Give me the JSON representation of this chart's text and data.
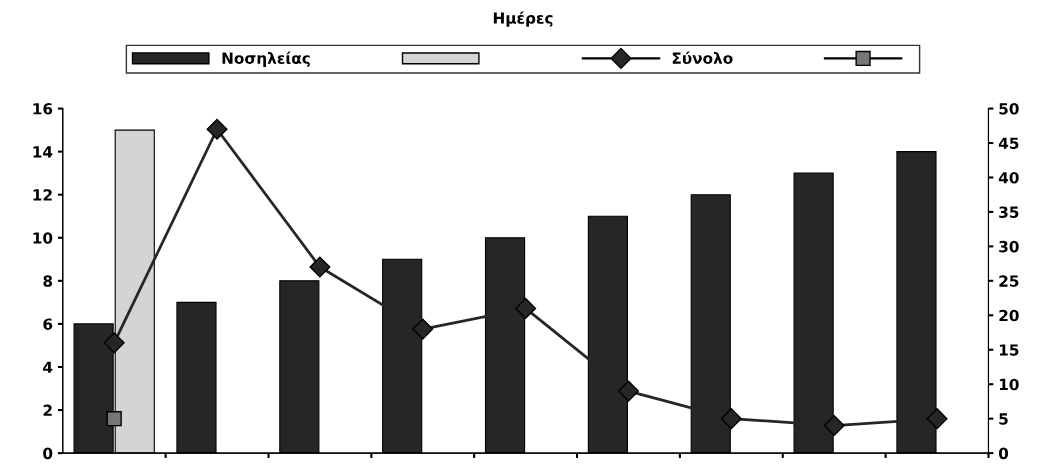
{
  "chart_data": {
    "type": "bar",
    "title": "Ημέρες",
    "categories": [
      null,
      null,
      null,
      null,
      null,
      null,
      null,
      null,
      null
    ],
    "series": [
      {
        "name": "Νοσηλείας",
        "color": "#262626",
        "values": [
          6,
          7,
          8,
          9,
          10,
          11,
          12,
          13,
          14
        ]
      },
      {
        "color": "#d4d4d4",
        "values": [
          15,
          null,
          null,
          null,
          null,
          null,
          null,
          null,
          null
        ]
      },
      {
        "name": "Σύνολο",
        "type": "line",
        "axis": "y2",
        "color": "#262626",
        "marker": "diamond",
        "values": [
          16,
          47,
          27,
          18,
          21,
          9,
          5,
          4,
          5
        ]
      },
      {
        "type": "line",
        "axis": "y2",
        "color": "#777777",
        "marker": "square",
        "values": [
          5,
          null,
          null,
          null,
          null,
          null,
          null,
          null,
          null
        ]
      }
    ],
    "ylim": [
      0,
      16
    ],
    "yticks": [
      0,
      2,
      4,
      6,
      8,
      10,
      12,
      14,
      16
    ],
    "y2lim": [
      0,
      50
    ],
    "y2ticks": [
      0,
      5,
      10,
      15,
      20,
      25,
      30,
      35,
      40,
      45,
      50
    ],
    "grid": false,
    "legend": "top"
  }
}
